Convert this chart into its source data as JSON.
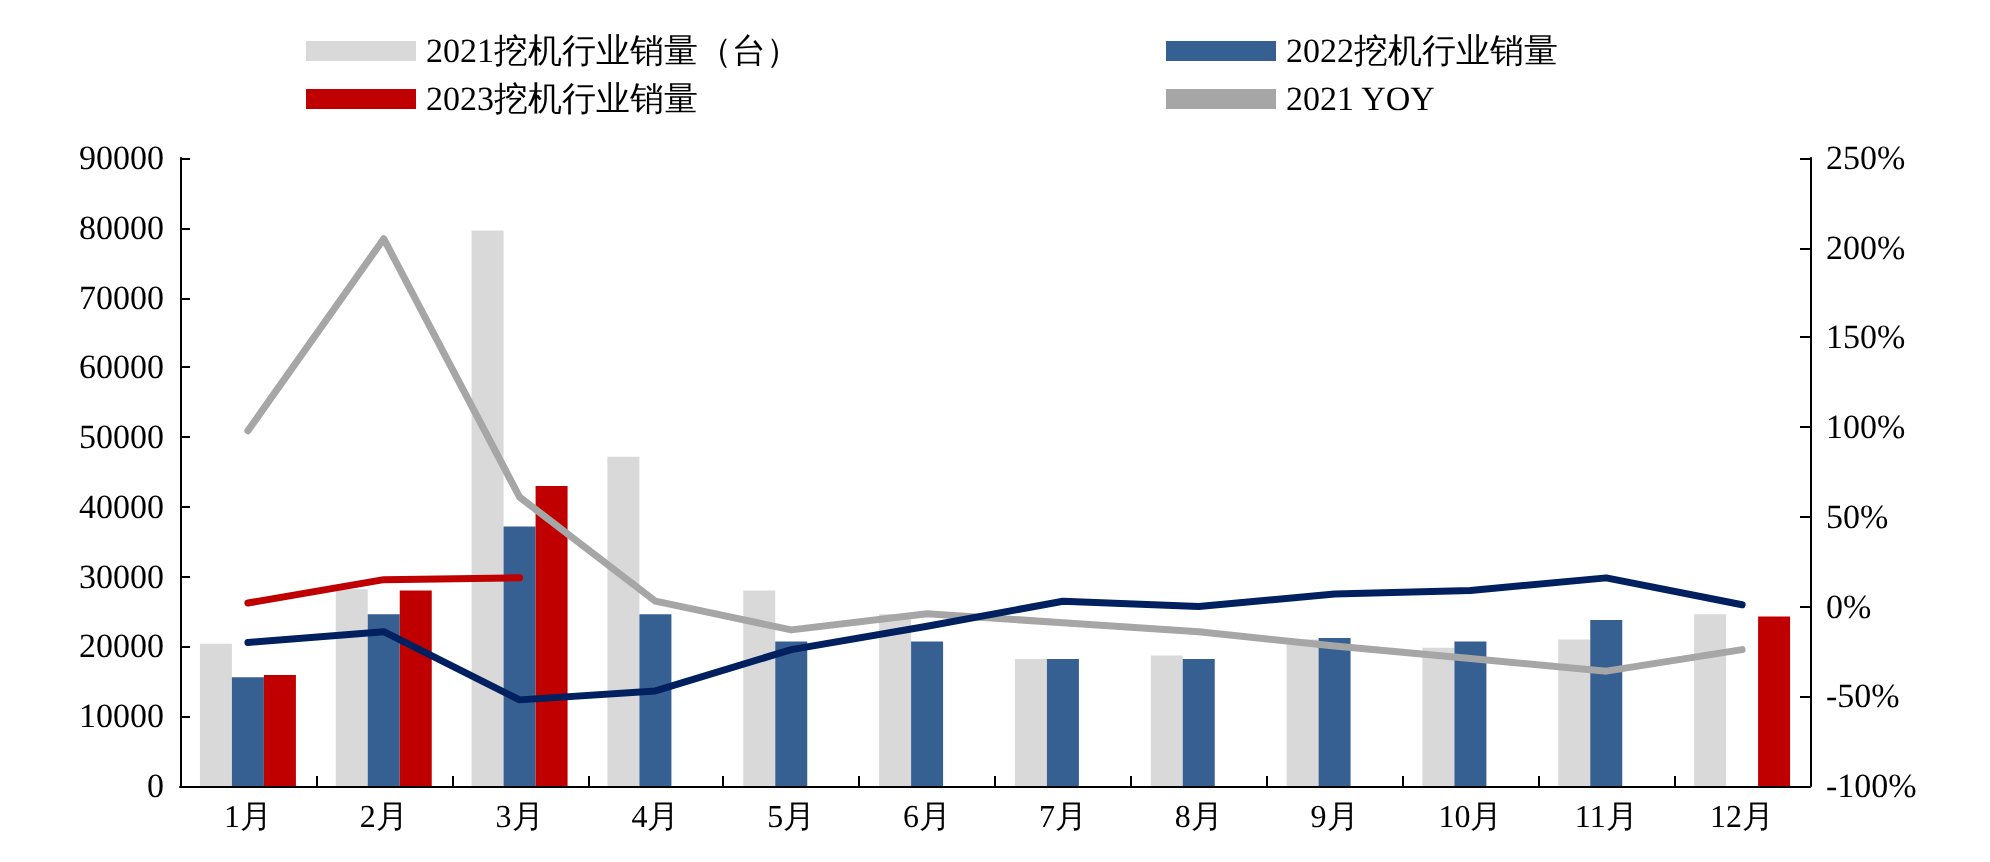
{
  "chart_data": {
    "type": "bar",
    "categories": [
      "1月",
      "2月",
      "3月",
      "4月",
      "5月",
      "6月",
      "7月",
      "8月",
      "9月",
      "10月",
      "11月",
      "12月"
    ],
    "series": [
      {
        "name": "2021挖机行业销量（台）",
        "color": "#d9d9d9",
        "values": [
          20400,
          28200,
          79600,
          47200,
          28000,
          24600,
          18200,
          18700,
          21000,
          19800,
          21000,
          24600
        ]
      },
      {
        "name": "2022挖机行业销量",
        "color": "#376092",
        "values": [
          15600,
          24600,
          37200,
          24600,
          20700,
          20700,
          18200,
          18200,
          21200,
          20700,
          23800,
          null
        ]
      },
      {
        "name": "2023挖机行业销量",
        "color": "#c00000",
        "values": [
          15900,
          28000,
          43000,
          null,
          null,
          null,
          null,
          null,
          null,
          null,
          null,
          24300
        ]
      },
      {
        "name": "2021 YOY",
        "type": "line",
        "axis": "y2",
        "color": "#a6a6a6",
        "values": [
          98,
          205,
          61,
          3,
          -13,
          -4,
          -9,
          -14,
          -22,
          -29,
          -36,
          -24
        ]
      },
      {
        "type": "line",
        "axis": "y2",
        "color": "#002060",
        "values": [
          -20,
          -14,
          -52,
          -47,
          -24,
          -11,
          3,
          0,
          7,
          9,
          16,
          1
        ]
      },
      {
        "type": "line",
        "axis": "y2",
        "color": "#c00000",
        "values": [
          2,
          15,
          16,
          null,
          null,
          null,
          null,
          null,
          null,
          null,
          null,
          null
        ]
      }
    ],
    "ylim": [
      0,
      90000
    ],
    "yticks": [
      0,
      10000,
      20000,
      30000,
      40000,
      50000,
      60000,
      70000,
      80000,
      90000
    ],
    "y2lim": [
      -100,
      250
    ],
    "y2ticks": [
      {
        "value": -100,
        "label": "-100%"
      },
      {
        "value": -50,
        "label": "-50%"
      },
      {
        "value": 0,
        "label": "0%"
      },
      {
        "value": 50,
        "label": "50%"
      },
      {
        "value": 100,
        "label": "100%"
      },
      {
        "value": 150,
        "label": "150%"
      },
      {
        "value": 200,
        "label": "200%"
      },
      {
        "value": 250,
        "label": "250%"
      }
    ],
    "grid": false,
    "legend": "top",
    "marker": "none",
    "line_style": "solid"
  }
}
